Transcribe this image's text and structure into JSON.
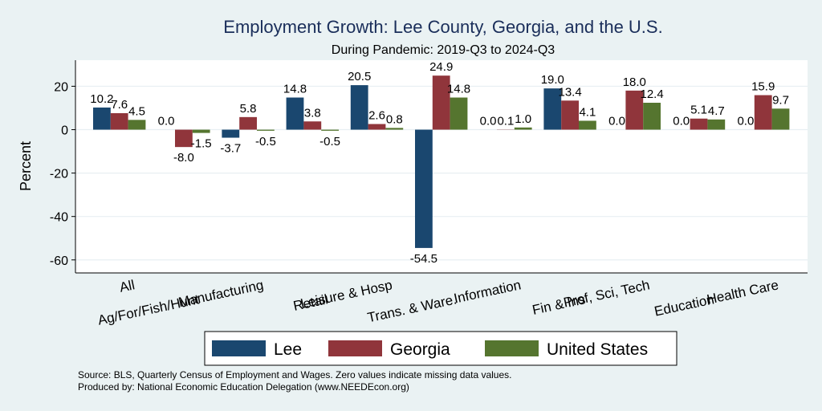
{
  "chart_data": {
    "type": "bar",
    "title": "Employment Growth: Lee County, Georgia, and the U.S.",
    "subtitle": "During Pandemic: 2019-Q3 to 2024-Q3",
    "xlabel": "",
    "ylabel": "Percent",
    "ylim": [
      -66,
      32
    ],
    "yticks": [
      20,
      0,
      -20,
      -40,
      -60
    ],
    "grid": true,
    "legend_position": "bottom",
    "categories": [
      "All",
      "Ag/For/Fish/Hunt",
      "Manufacturing",
      "Retail",
      "Leisure & Hosp",
      "Trans. & Ware.",
      "Information",
      "Fin & Ins",
      "Prof, Sci, Tech",
      "Education",
      "Health Care"
    ],
    "series": [
      {
        "name": "Lee",
        "color": "#1a476f",
        "values": [
          10.2,
          0.0,
          -3.7,
          14.8,
          20.5,
          -54.5,
          0.0,
          19.0,
          0.0,
          0.0,
          0.0
        ]
      },
      {
        "name": "Georgia",
        "color": "#90353b",
        "values": [
          7.6,
          -8.0,
          5.8,
          3.8,
          2.6,
          24.9,
          0.1,
          13.4,
          18.0,
          5.1,
          15.9
        ]
      },
      {
        "name": "United States",
        "color": "#55752f",
        "values": [
          4.5,
          -1.5,
          -0.5,
          -0.5,
          0.8,
          14.8,
          1.0,
          4.1,
          12.4,
          4.7,
          9.7
        ]
      }
    ],
    "notes": [
      "Source: BLS, Quarterly Census of Employment and Wages. Zero values indicate missing data values.",
      "Produced by: National Economic Education Delegation (www.NEEDEcon.org)"
    ]
  }
}
